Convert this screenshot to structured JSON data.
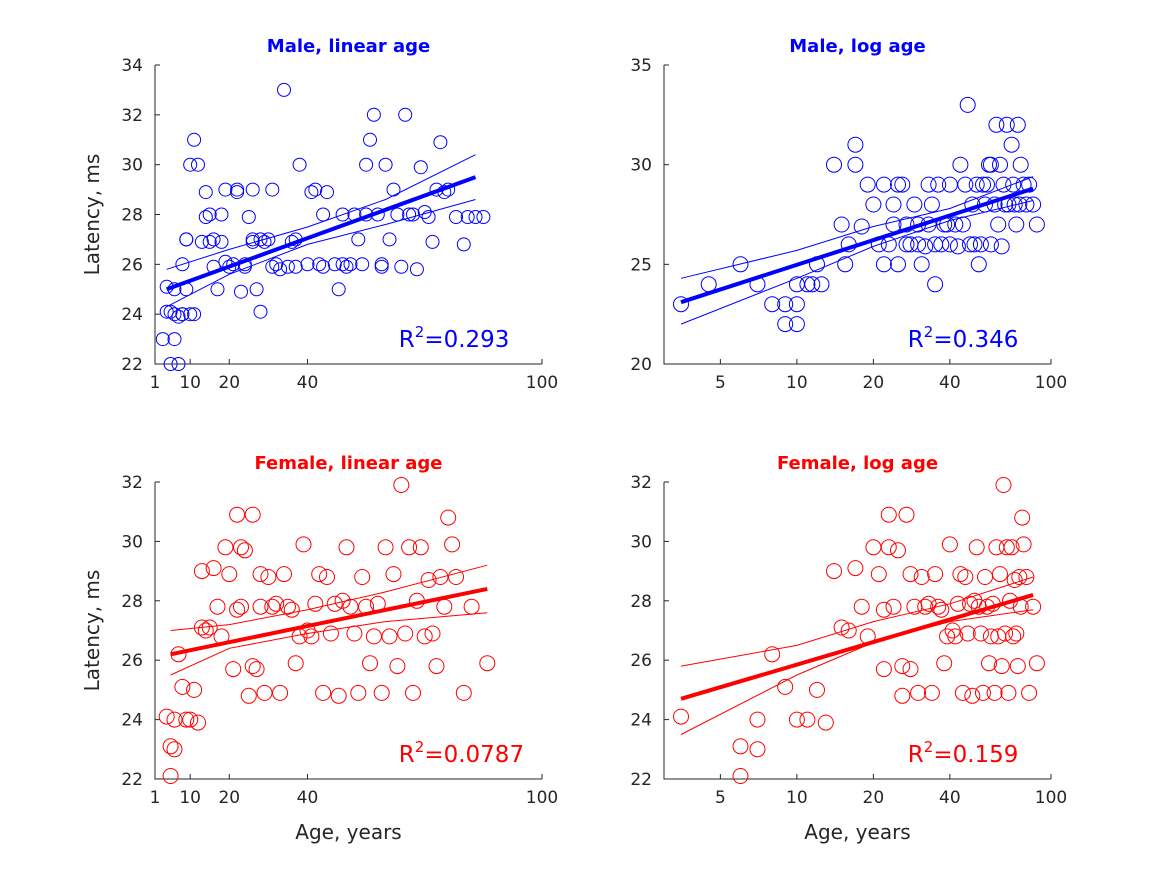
{
  "chart_data": [
    {
      "type": "scatter",
      "title": "Male, linear age",
      "xlabel": "",
      "ylabel": "Latency, ms",
      "x_scale": "linear",
      "xlim": [
        1,
        100
      ],
      "ylim": [
        22,
        34
      ],
      "xticks": [
        1,
        10,
        20,
        40,
        100
      ],
      "yticks": [
        22,
        24,
        26,
        28,
        30,
        32,
        34
      ],
      "color": "#0000ff",
      "marker_size": "small",
      "fit": {
        "x": [
          4,
          83
        ],
        "y": [
          25.0,
          29.5
        ]
      },
      "ci_lower": {
        "x": [
          4,
          20,
          40,
          60,
          83
        ],
        "y": [
          24.3,
          25.6,
          26.8,
          27.6,
          28.6
        ]
      },
      "ci_upper": {
        "x": [
          4,
          20,
          40,
          60,
          83
        ],
        "y": [
          25.8,
          26.6,
          27.5,
          28.6,
          30.4
        ]
      },
      "r2_label": {
        "prefix": "R",
        "sup": "2",
        "value": "=0.293"
      },
      "series": [
        {
          "x": [
            3,
            4,
            4,
            5,
            5,
            6,
            6,
            6,
            7,
            7,
            8,
            8,
            8,
            9,
            9,
            9,
            10,
            10,
            11,
            11,
            12,
            13,
            14,
            14,
            15,
            15,
            16,
            16,
            17,
            18,
            18,
            19,
            19,
            20,
            21,
            22,
            22,
            23,
            24,
            24,
            25,
            26,
            26,
            26,
            27,
            28,
            28,
            29,
            30,
            31,
            31,
            32,
            33,
            34,
            35,
            36,
            37,
            37,
            38,
            40,
            41,
            42,
            43,
            44,
            44,
            45,
            47,
            48,
            49,
            49,
            50,
            51,
            52,
            53,
            54,
            55,
            55,
            56,
            57,
            58,
            59,
            59,
            60,
            61,
            62,
            63,
            64,
            65,
            66,
            67,
            68,
            69,
            70,
            71,
            72,
            73,
            74,
            75,
            76,
            78,
            80,
            81,
            83,
            85
          ],
          "y": [
            23,
            24.1,
            25.1,
            24.1,
            22,
            23,
            24,
            25,
            22,
            23.9,
            24,
            24,
            26,
            25,
            27,
            27,
            24,
            30,
            31,
            24,
            30,
            26.9,
            28.9,
            27.9,
            28,
            26.9,
            27,
            25.9,
            25,
            28,
            26.9,
            26.1,
            29,
            25.9,
            26,
            28.9,
            29,
            24.9,
            26,
            25.9,
            27.9,
            27,
            26.9,
            29,
            25,
            24.1,
            27,
            26.9,
            27,
            25.9,
            29,
            26,
            25.8,
            33,
            25.9,
            26.9,
            27,
            25.9,
            30,
            26,
            28.9,
            29,
            26,
            28,
            25.9,
            28.9,
            26,
            25,
            26,
            28,
            25.9,
            26,
            28,
            27,
            26,
            30,
            28,
            31,
            32,
            28,
            25.9,
            26,
            30,
            27,
            29,
            28,
            25.9,
            32,
            28,
            28,
            25.8,
            29.9,
            28.1,
            27.9,
            26.9,
            29,
            30.9,
            28.9,
            29,
            27.9,
            26.8,
            27.9,
            27.9,
            27.9
          ]
        }
      ]
    },
    {
      "type": "scatter",
      "title": "Male, log age",
      "xlabel": "",
      "ylabel": "",
      "x_scale": "log",
      "xlim": [
        3,
        100
      ],
      "ylim": [
        20,
        35
      ],
      "xticks": [
        5,
        10,
        20,
        40,
        100
      ],
      "yticks": [
        20,
        25,
        30,
        35
      ],
      "color": "#0000ff",
      "marker_size": "large",
      "fit": {
        "x": [
          3.5,
          85
        ],
        "y": [
          23.1,
          28.8
        ]
      },
      "ci_lower": {
        "x": [
          3.5,
          10,
          20,
          40,
          85
        ],
        "y": [
          22.0,
          24.3,
          25.9,
          27.2,
          28.2
        ]
      },
      "ci_upper": {
        "x": [
          3.5,
          10,
          20,
          40,
          85
        ],
        "y": [
          24.3,
          25.7,
          26.9,
          27.8,
          29.4
        ]
      },
      "r2_label": {
        "prefix": "R",
        "sup": "2",
        "value": "=0.346"
      },
      "series": [
        {
          "x": [
            3.5,
            4.5,
            6,
            7,
            8,
            9,
            9,
            10,
            10,
            10,
            11,
            11.5,
            12,
            12.5,
            14,
            15,
            15.5,
            16,
            17,
            17,
            18,
            19,
            20,
            21,
            22,
            22,
            23,
            24,
            24,
            25,
            25,
            26,
            27,
            27,
            28,
            29,
            30,
            30,
            31,
            32,
            33,
            33,
            34,
            35,
            35,
            36,
            37,
            38,
            39,
            40,
            40,
            42,
            43,
            44,
            45,
            46,
            47,
            48,
            49,
            50,
            51,
            52,
            53,
            54,
            55,
            56,
            57,
            58,
            58,
            60,
            61,
            62,
            63,
            64,
            65,
            66,
            67,
            68,
            70,
            71,
            72,
            73,
            74,
            75,
            76,
            78,
            80,
            82,
            85,
            88
          ],
          "y": [
            23,
            24,
            25,
            24,
            23,
            22,
            23,
            22,
            23,
            24,
            24,
            24,
            25,
            24,
            30,
            27,
            25,
            26,
            31,
            30,
            26.9,
            29,
            28,
            26,
            29,
            25,
            26,
            27,
            28,
            25,
            29,
            29,
            26,
            27,
            26,
            28,
            26,
            27,
            25,
            25.9,
            27,
            29,
            28,
            24,
            26,
            29,
            26,
            27,
            27,
            26,
            29,
            27,
            25.9,
            30,
            27,
            29,
            33,
            26,
            28,
            26,
            29,
            25,
            26,
            29,
            28,
            29,
            30,
            26,
            30,
            28,
            32,
            27,
            30,
            25.9,
            29,
            28,
            32,
            28,
            31,
            29,
            28,
            27,
            32,
            28,
            30,
            29,
            28,
            29,
            28,
            27
          ]
        }
      ]
    },
    {
      "type": "scatter",
      "title": "Female, linear age",
      "xlabel": "Age, years",
      "ylabel": "Latency, ms",
      "x_scale": "linear",
      "xlim": [
        1,
        100
      ],
      "ylim": [
        22,
        32
      ],
      "xticks": [
        1,
        10,
        20,
        40,
        100
      ],
      "yticks": [
        22,
        24,
        26,
        28,
        30,
        32
      ],
      "color": "#ff0000",
      "marker_size": "large",
      "fit": {
        "x": [
          5,
          86
        ],
        "y": [
          26.2,
          28.4
        ]
      },
      "ci_lower": {
        "x": [
          5,
          20,
          40,
          60,
          86
        ],
        "y": [
          25.5,
          26.4,
          26.9,
          27.3,
          27.6
        ]
      },
      "ci_upper": {
        "x": [
          5,
          20,
          40,
          60,
          86
        ],
        "y": [
          27.0,
          27.2,
          27.7,
          28.3,
          29.2
        ]
      },
      "r2_label": {
        "prefix": "R",
        "sup": "2",
        "value": "=0.0787"
      },
      "series": [
        {
          "x": [
            4,
            5,
            5,
            6,
            6,
            7,
            8,
            9,
            10,
            11,
            12,
            13,
            13,
            14,
            15,
            16,
            17,
            18,
            19,
            20,
            21,
            22,
            22,
            23,
            23,
            24,
            25,
            26,
            26,
            27,
            28,
            28,
            29,
            30,
            31,
            32,
            33,
            34,
            35,
            36,
            37,
            38,
            39,
            40,
            41,
            42,
            43,
            44,
            45,
            46,
            47,
            48,
            49,
            50,
            51,
            52,
            53,
            54,
            55,
            56,
            57,
            58,
            59,
            60,
            61,
            62,
            63,
            64,
            65,
            66,
            67,
            68,
            69,
            70,
            71,
            72,
            73,
            74,
            75,
            76,
            77,
            78,
            80,
            82,
            86
          ],
          "y": [
            24.1,
            23.1,
            22.1,
            24,
            23,
            26.2,
            25.1,
            24,
            24,
            25,
            23.9,
            29,
            27.1,
            27,
            27.1,
            29.1,
            27.8,
            26.8,
            29.8,
            28.9,
            25.7,
            27.7,
            30.9,
            29.8,
            27.8,
            29.7,
            24.8,
            25.8,
            30.9,
            25.7,
            28.9,
            27.8,
            24.9,
            28.8,
            27.8,
            27.9,
            24.9,
            28.9,
            27.8,
            27.7,
            25.9,
            26.8,
            29.9,
            27,
            26.8,
            27.9,
            28.9,
            24.9,
            28.8,
            26.9,
            27.9,
            24.8,
            28,
            29.8,
            27.8,
            26.9,
            24.9,
            28.8,
            27.8,
            25.9,
            26.8,
            27.9,
            24.9,
            29.8,
            26.8,
            28.9,
            25.8,
            31.9,
            26.9,
            29.8,
            24.9,
            28,
            29.8,
            26.8,
            28.7,
            26.9,
            25.8,
            28.8,
            27.8,
            30.8,
            29.9,
            28.8,
            24.9,
            27.8,
            25.9
          ]
        }
      ]
    },
    {
      "type": "scatter",
      "title": "Female, log age",
      "xlabel": "Age, years",
      "ylabel": "",
      "x_scale": "log",
      "xlim": [
        3,
        100
      ],
      "ylim": [
        22,
        32
      ],
      "xticks": [
        5,
        10,
        20,
        40,
        100
      ],
      "yticks": [
        22,
        24,
        26,
        28,
        30,
        32
      ],
      "color": "#ff0000",
      "marker_size": "large",
      "fit": {
        "x": [
          3.5,
          85
        ],
        "y": [
          24.7,
          28.2
        ]
      },
      "ci_lower": {
        "x": [
          3.5,
          10,
          20,
          40,
          85
        ],
        "y": [
          23.5,
          25.5,
          26.6,
          27.3,
          27.7
        ]
      },
      "ci_upper": {
        "x": [
          3.5,
          10,
          20,
          40,
          85
        ],
        "y": [
          25.8,
          26.5,
          27.3,
          27.9,
          28.8
        ]
      },
      "r2_label": {
        "prefix": "R",
        "sup": "2",
        "value": "=0.159"
      },
      "series": [
        {
          "x": [
            3.5,
            6,
            6,
            7,
            7,
            8,
            9,
            10,
            11,
            12,
            13,
            14,
            15,
            16,
            17,
            18,
            19,
            20,
            21,
            22,
            22,
            23,
            23,
            24,
            25,
            26,
            26,
            27,
            28,
            28,
            29,
            30,
            31,
            32,
            33,
            34,
            35,
            36,
            37,
            38,
            39,
            40,
            41,
            42,
            43,
            44,
            45,
            46,
            47,
            48,
            49,
            50,
            51,
            52,
            53,
            54,
            55,
            56,
            57,
            58,
            59,
            60,
            61,
            62,
            63,
            64,
            65,
            66,
            67,
            68,
            69,
            70,
            71,
            72,
            73,
            74,
            75,
            76,
            77,
            78,
            80,
            82,
            85,
            88
          ],
          "y": [
            24.1,
            22.1,
            23.1,
            24,
            23,
            26.2,
            25.1,
            24,
            24,
            25,
            23.9,
            29,
            27.1,
            27,
            29.1,
            27.8,
            26.8,
            29.8,
            28.9,
            25.7,
            27.7,
            30.9,
            29.8,
            27.8,
            29.7,
            24.8,
            25.8,
            30.9,
            25.7,
            28.9,
            27.8,
            24.9,
            28.8,
            27.8,
            27.9,
            24.9,
            28.9,
            27.8,
            27.7,
            25.9,
            26.8,
            29.9,
            27,
            26.8,
            27.9,
            28.9,
            24.9,
            28.8,
            26.9,
            27.9,
            24.8,
            28,
            29.8,
            27.8,
            26.9,
            24.9,
            28.8,
            27.8,
            25.9,
            26.8,
            27.9,
            24.9,
            29.8,
            26.8,
            28.9,
            25.8,
            31.9,
            26.9,
            29.8,
            24.9,
            28,
            29.8,
            26.8,
            28.7,
            26.9,
            25.8,
            28.8,
            27.8,
            30.8,
            29.9,
            28.8,
            24.9,
            27.8,
            25.9
          ]
        }
      ]
    }
  ]
}
